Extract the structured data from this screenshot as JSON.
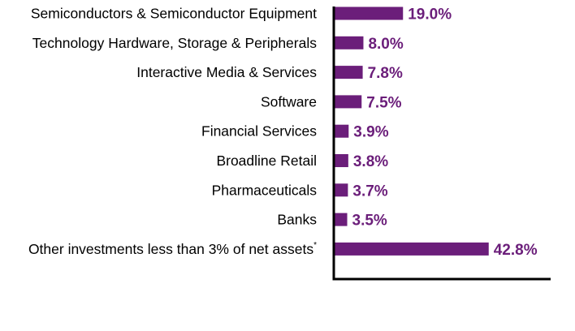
{
  "chart_data": {
    "type": "bar",
    "orientation": "horizontal",
    "title": "",
    "xlabel": "",
    "ylabel": "",
    "categories": [
      "Semiconductors & Semiconductor Equipment",
      "Technology Hardware, Storage & Peripherals",
      "Interactive Media & Services",
      "Software",
      "Financial Services",
      "Broadline Retail",
      "Pharmaceuticals",
      "Banks",
      "Other investments less than 3% of net assets"
    ],
    "category_superscripts": [
      "",
      "",
      "",
      "",
      "",
      "",
      "",
      "",
      "*"
    ],
    "values": [
      19.0,
      8.0,
      7.8,
      7.5,
      3.9,
      3.8,
      3.7,
      3.5,
      42.8
    ],
    "value_labels": [
      "19.0%",
      "8.0%",
      "7.8%",
      "7.5%",
      "3.9%",
      "3.8%",
      "3.7%",
      "3.5%",
      "42.8%"
    ],
    "xlim": [
      0,
      60
    ],
    "grid": false,
    "legend": "none",
    "bar_color": "#6b1e7a",
    "label_color": "#6b1e7a"
  }
}
